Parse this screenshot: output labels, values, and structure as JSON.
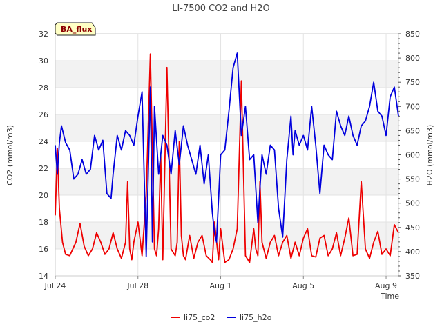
{
  "chart_data": {
    "type": "line",
    "title": "LI-7500 CO2 and H2O",
    "badge": "BA_flux",
    "xlabel": "Time",
    "ylabel": "CO2 (mmol/m3)",
    "y2label": "H2O (mmol/m3)",
    "xlim": [
      0,
      16.6
    ],
    "ylim": [
      14,
      32
    ],
    "y2lim": [
      350,
      850
    ],
    "x_ticks": [
      {
        "label": "Jul 24",
        "day": 0
      },
      {
        "label": "Jul 28",
        "day": 4
      },
      {
        "label": "Aug 1",
        "day": 8
      },
      {
        "label": "Aug 5",
        "day": 12
      },
      {
        "label": "Aug 9",
        "day": 16
      }
    ],
    "y_ticks": [
      14,
      16,
      18,
      20,
      22,
      24,
      26,
      28,
      30,
      32
    ],
    "y2_ticks": [
      350,
      400,
      450,
      500,
      550,
      600,
      650,
      700,
      750,
      800,
      850
    ],
    "series": [
      {
        "name": "li75_co2",
        "axis": "left",
        "color": "#ee0000",
        "x": [
          0.0,
          0.1,
          0.2,
          0.35,
          0.5,
          0.7,
          1.0,
          1.2,
          1.4,
          1.6,
          1.8,
          2.0,
          2.2,
          2.4,
          2.6,
          2.8,
          3.0,
          3.2,
          3.4,
          3.5,
          3.6,
          3.7,
          3.8,
          4.0,
          4.2,
          4.4,
          4.6,
          4.8,
          4.9,
          5.0,
          5.1,
          5.2,
          5.4,
          5.6,
          5.8,
          5.9,
          6.0,
          6.1,
          6.2,
          6.3,
          6.5,
          6.7,
          6.9,
          7.1,
          7.3,
          7.5,
          7.6,
          7.7,
          7.9,
          8.0,
          8.2,
          8.4,
          8.6,
          8.8,
          9.0,
          9.2,
          9.4,
          9.6,
          9.7,
          9.8,
          9.9,
          10.0,
          10.2,
          10.4,
          10.6,
          10.8,
          11.0,
          11.2,
          11.4,
          11.6,
          11.8,
          12.0,
          12.2,
          12.4,
          12.6,
          12.8,
          13.0,
          13.2,
          13.4,
          13.6,
          13.8,
          14.0,
          14.2,
          14.4,
          14.6,
          14.8,
          15.0,
          15.2,
          15.4,
          15.6,
          15.8,
          16.0,
          16.2,
          16.4,
          16.6
        ],
        "values": [
          18.5,
          23.5,
          19.0,
          16.5,
          15.6,
          15.5,
          16.5,
          17.9,
          16.2,
          15.5,
          16.0,
          17.2,
          16.5,
          15.6,
          16.0,
          17.2,
          16.0,
          15.3,
          16.5,
          21.0,
          16.0,
          15.2,
          16.5,
          18.0,
          15.5,
          20.0,
          30.5,
          16.0,
          15.5,
          17.5,
          23.0,
          15.2,
          29.5,
          16.0,
          15.5,
          16.5,
          24.0,
          17.0,
          15.5,
          15.2,
          17.0,
          15.3,
          16.5,
          17.0,
          15.5,
          15.2,
          15.0,
          18.0,
          15.2,
          17.5,
          15.0,
          15.2,
          16.0,
          17.5,
          28.5,
          15.5,
          15.0,
          17.5,
          16.0,
          15.5,
          21.0,
          16.5,
          15.3,
          16.5,
          17.0,
          15.5,
          16.5,
          17.0,
          15.3,
          16.5,
          15.5,
          16.8,
          17.5,
          15.5,
          15.4,
          16.8,
          17.0,
          15.5,
          16.0,
          17.2,
          15.5,
          16.8,
          18.3,
          15.5,
          15.6,
          21.0,
          16.0,
          15.3,
          16.5,
          17.3,
          15.6,
          16.0,
          15.5,
          17.8,
          17.2
        ]
      },
      {
        "name": "li75_h2o",
        "axis": "right",
        "color": "#0000dd",
        "x": [
          0.0,
          0.1,
          0.2,
          0.3,
          0.5,
          0.7,
          0.9,
          1.1,
          1.3,
          1.5,
          1.7,
          1.9,
          2.1,
          2.3,
          2.5,
          2.7,
          2.8,
          3.0,
          3.2,
          3.4,
          3.6,
          3.8,
          4.0,
          4.2,
          4.4,
          4.6,
          4.7,
          4.8,
          5.0,
          5.2,
          5.4,
          5.6,
          5.8,
          6.0,
          6.2,
          6.4,
          6.6,
          6.8,
          7.0,
          7.2,
          7.4,
          7.6,
          7.7,
          7.8,
          8.0,
          8.2,
          8.4,
          8.6,
          8.8,
          9.0,
          9.2,
          9.4,
          9.6,
          9.8,
          10.0,
          10.2,
          10.4,
          10.6,
          10.8,
          11.0,
          11.2,
          11.4,
          11.5,
          11.6,
          11.8,
          12.0,
          12.2,
          12.4,
          12.6,
          12.8,
          13.0,
          13.2,
          13.4,
          13.6,
          13.8,
          14.0,
          14.2,
          14.4,
          14.6,
          14.8,
          15.0,
          15.2,
          15.4,
          15.6,
          15.8,
          16.0,
          16.2,
          16.4,
          16.6
        ],
        "values": [
          620,
          560,
          625,
          660,
          625,
          610,
          550,
          560,
          590,
          560,
          570,
          640,
          610,
          630,
          520,
          510,
          560,
          640,
          610,
          650,
          640,
          620,
          680,
          730,
          390,
          740,
          420,
          700,
          560,
          640,
          620,
          560,
          650,
          580,
          660,
          620,
          590,
          560,
          620,
          540,
          600,
          480,
          440,
          420,
          600,
          610,
          690,
          780,
          810,
          640,
          700,
          590,
          600,
          460,
          600,
          560,
          620,
          610,
          490,
          430,
          590,
          680,
          600,
          650,
          620,
          640,
          610,
          700,
          620,
          520,
          620,
          600,
          590,
          690,
          660,
          640,
          680,
          640,
          620,
          660,
          670,
          700,
          750,
          690,
          680,
          640,
          720,
          740,
          680
        ]
      }
    ]
  }
}
